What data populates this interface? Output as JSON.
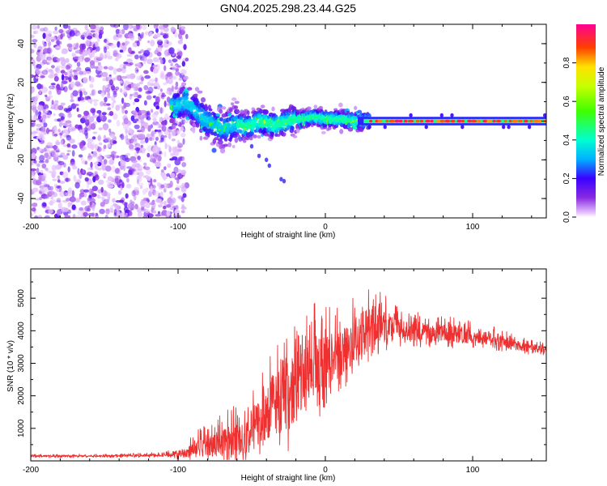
{
  "figure_title": "GN04.2025.298.23.44.G25",
  "colors": {
    "snr_line": "#ee3030",
    "axis": "#000000",
    "background": "#ffffff"
  },
  "chart_data": [
    {
      "type": "heatmap",
      "title": "GN04.2025.298.23.44.G25",
      "xlabel": "Height of straight line (km)",
      "ylabel": "Frequency (Hz)",
      "xlim": [
        -200,
        150
      ],
      "ylim": [
        -50,
        50
      ],
      "xticks": [
        -200,
        -100,
        0,
        100
      ],
      "yticks": [
        -40,
        -20,
        0,
        20,
        40
      ],
      "xtick_labels": [
        "-200",
        "-100",
        "0",
        "100"
      ],
      "ytick_labels": [
        "-40",
        "-20",
        "0",
        "20",
        "40"
      ],
      "colorbar": {
        "label": "Normalized spectral amplitude",
        "range": [
          0,
          1
        ],
        "ticks": [
          0.0,
          0.2,
          0.4,
          0.6,
          0.8
        ],
        "tick_labels": [
          "0.0",
          "0.2",
          "0.4",
          "0.6",
          "0.8"
        ],
        "colormap": "hsv-rainbow (violet → blue → cyan → green → yellow → red → magenta)"
      },
      "regions": [
        {
          "x_range": [
            -200,
            -100
          ],
          "description": "broadband noise",
          "freq_range": [
            -50,
            50
          ],
          "amplitude": 0.1
        },
        {
          "x_range": [
            -100,
            -60
          ],
          "description": "signal onset",
          "freq_center": [
            8,
            -5
          ],
          "amplitude": 0.35
        },
        {
          "x_range": [
            -60,
            30
          ],
          "description": "signal track",
          "freq_center": [
            -3,
            1
          ],
          "amplitude": 0.45
        },
        {
          "x_range": [
            30,
            150
          ],
          "description": "strong carrier",
          "freq_center": 0,
          "amplitude": 0.9
        }
      ],
      "track": [
        {
          "x": -100,
          "f": 8
        },
        {
          "x": -95,
          "f": 10
        },
        {
          "x": -90,
          "f": 7
        },
        {
          "x": -85,
          "f": 3
        },
        {
          "x": -80,
          "f": 0
        },
        {
          "x": -75,
          "f": -2
        },
        {
          "x": -70,
          "f": -4
        },
        {
          "x": -65,
          "f": -3
        },
        {
          "x": -60,
          "f": -1
        },
        {
          "x": -55,
          "f": -3
        },
        {
          "x": -50,
          "f": -2
        },
        {
          "x": -45,
          "f": 0
        },
        {
          "x": -40,
          "f": -1
        },
        {
          "x": -35,
          "f": -2
        },
        {
          "x": -30,
          "f": -1
        },
        {
          "x": -25,
          "f": 0
        },
        {
          "x": -20,
          "f": 1
        },
        {
          "x": -15,
          "f": 1
        },
        {
          "x": -10,
          "f": 2
        },
        {
          "x": -5,
          "f": 2
        },
        {
          "x": 0,
          "f": 1
        },
        {
          "x": 10,
          "f": 1
        },
        {
          "x": 20,
          "f": 0
        },
        {
          "x": 30,
          "f": 0
        },
        {
          "x": 150,
          "f": 0
        }
      ],
      "outlier_points": [
        {
          "x": -50,
          "f": -13
        },
        {
          "x": -45,
          "f": -18
        },
        {
          "x": -40,
          "f": -20
        },
        {
          "x": -38,
          "f": -23
        },
        {
          "x": -30,
          "f": -30
        },
        {
          "x": -28,
          "f": -31
        }
      ]
    },
    {
      "type": "line",
      "title": "",
      "xlabel": "Height of straight line (km)",
      "ylabel": "SNR (10 * v/v)",
      "xlim": [
        -200,
        150
      ],
      "ylim": [
        0,
        5900
      ],
      "xticks": [
        -200,
        -100,
        0,
        100
      ],
      "yticks": [
        1000,
        2000,
        3000,
        4000,
        5000
      ],
      "xtick_labels": [
        "-200",
        "-100",
        "0",
        "100"
      ],
      "ytick_labels": [
        "1000",
        "2000",
        "3000",
        "4000",
        "5000"
      ],
      "series": [
        {
          "name": "SNR",
          "color": "#ee3030",
          "envelope": [
            {
              "x": -200,
              "mean": 150,
              "spread": 50
            },
            {
              "x": -150,
              "mean": 150,
              "spread": 60
            },
            {
              "x": -110,
              "mean": 180,
              "spread": 80
            },
            {
              "x": -95,
              "mean": 250,
              "spread": 250
            },
            {
              "x": -85,
              "mean": 500,
              "spread": 500
            },
            {
              "x": -75,
              "mean": 500,
              "spread": 700
            },
            {
              "x": -65,
              "mean": 700,
              "spread": 900
            },
            {
              "x": -55,
              "mean": 700,
              "spread": 900
            },
            {
              "x": -45,
              "mean": 1200,
              "spread": 1400
            },
            {
              "x": -35,
              "mean": 1800,
              "spread": 1800
            },
            {
              "x": -25,
              "mean": 2000,
              "spread": 1900
            },
            {
              "x": -15,
              "mean": 2600,
              "spread": 2000
            },
            {
              "x": -5,
              "mean": 2900,
              "spread": 1800
            },
            {
              "x": 5,
              "mean": 3200,
              "spread": 1400
            },
            {
              "x": 15,
              "mean": 3500,
              "spread": 1300
            },
            {
              "x": 25,
              "mean": 3900,
              "spread": 1200
            },
            {
              "x": 32,
              "mean": 4300,
              "spread": 1300
            },
            {
              "x": 40,
              "mean": 4200,
              "spread": 900
            },
            {
              "x": 50,
              "mean": 4050,
              "spread": 600
            },
            {
              "x": 70,
              "mean": 3950,
              "spread": 500
            },
            {
              "x": 90,
              "mean": 3900,
              "spread": 500
            },
            {
              "x": 110,
              "mean": 3800,
              "spread": 400
            },
            {
              "x": 130,
              "mean": 3550,
              "spread": 300
            },
            {
              "x": 150,
              "mean": 3400,
              "spread": 200
            }
          ]
        }
      ]
    }
  ]
}
